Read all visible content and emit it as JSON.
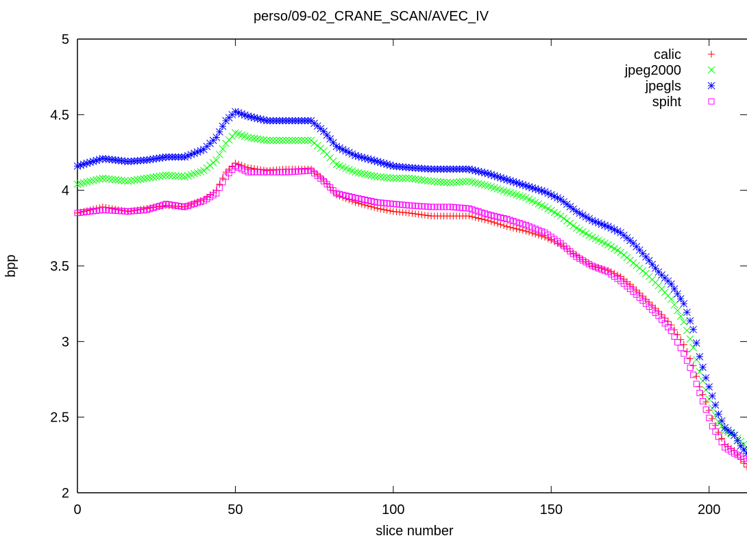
{
  "chart_data": {
    "type": "scatter",
    "title": "perso/09-02_CRANE_SCAN/AVEC_IV",
    "xlabel": "slice number",
    "ylabel": "bpp",
    "xlim": [
      0,
      212
    ],
    "ylim": [
      2,
      5
    ],
    "xticks": [
      0,
      50,
      100,
      150,
      200
    ],
    "yticks": [
      2,
      2.5,
      3,
      3.5,
      4,
      4.5,
      5
    ],
    "grid": false,
    "legend_position": "top-right",
    "x_step": 1,
    "series": [
      {
        "name": "calic",
        "color": "#ff0000",
        "marker": "plus",
        "keypoints": [
          [
            0,
            3.85
          ],
          [
            8,
            3.89
          ],
          [
            16,
            3.86
          ],
          [
            22,
            3.88
          ],
          [
            28,
            3.9
          ],
          [
            34,
            3.89
          ],
          [
            40,
            3.94
          ],
          [
            44,
            4.0
          ],
          [
            47,
            4.12
          ],
          [
            50,
            4.18
          ],
          [
            54,
            4.15
          ],
          [
            60,
            4.13
          ],
          [
            66,
            4.14
          ],
          [
            74,
            4.14
          ],
          [
            78,
            4.07
          ],
          [
            82,
            3.97
          ],
          [
            88,
            3.92
          ],
          [
            95,
            3.88
          ],
          [
            100,
            3.86
          ],
          [
            105,
            3.85
          ],
          [
            112,
            3.83
          ],
          [
            118,
            3.83
          ],
          [
            124,
            3.83
          ],
          [
            130,
            3.8
          ],
          [
            136,
            3.76
          ],
          [
            142,
            3.73
          ],
          [
            148,
            3.69
          ],
          [
            153,
            3.64
          ],
          [
            158,
            3.57
          ],
          [
            163,
            3.5
          ],
          [
            168,
            3.47
          ],
          [
            172,
            3.43
          ],
          [
            176,
            3.36
          ],
          [
            180,
            3.28
          ],
          [
            184,
            3.2
          ],
          [
            188,
            3.11
          ],
          [
            192,
            2.98
          ],
          [
            195,
            2.84
          ],
          [
            197,
            2.7
          ],
          [
            199,
            2.6
          ],
          [
            201,
            2.49
          ],
          [
            203,
            2.4
          ],
          [
            205,
            2.32
          ],
          [
            208,
            2.28
          ],
          [
            210,
            2.22
          ],
          [
            212,
            2.17
          ]
        ]
      },
      {
        "name": "jpeg2000",
        "color": "#00ff00",
        "marker": "cross",
        "keypoints": [
          [
            0,
            4.04
          ],
          [
            8,
            4.08
          ],
          [
            16,
            4.06
          ],
          [
            22,
            4.08
          ],
          [
            28,
            4.1
          ],
          [
            34,
            4.09
          ],
          [
            40,
            4.13
          ],
          [
            44,
            4.2
          ],
          [
            47,
            4.31
          ],
          [
            50,
            4.38
          ],
          [
            54,
            4.35
          ],
          [
            60,
            4.33
          ],
          [
            66,
            4.33
          ],
          [
            74,
            4.33
          ],
          [
            78,
            4.26
          ],
          [
            82,
            4.17
          ],
          [
            88,
            4.12
          ],
          [
            95,
            4.09
          ],
          [
            100,
            4.08
          ],
          [
            105,
            4.08
          ],
          [
            112,
            4.06
          ],
          [
            118,
            4.05
          ],
          [
            124,
            4.06
          ],
          [
            130,
            4.03
          ],
          [
            136,
            3.99
          ],
          [
            142,
            3.95
          ],
          [
            148,
            3.89
          ],
          [
            153,
            3.83
          ],
          [
            158,
            3.75
          ],
          [
            163,
            3.69
          ],
          [
            168,
            3.64
          ],
          [
            172,
            3.59
          ],
          [
            176,
            3.52
          ],
          [
            180,
            3.45
          ],
          [
            184,
            3.37
          ],
          [
            188,
            3.28
          ],
          [
            192,
            3.13
          ],
          [
            195,
            2.96
          ],
          [
            197,
            2.8
          ],
          [
            199,
            2.68
          ],
          [
            201,
            2.56
          ],
          [
            203,
            2.47
          ],
          [
            205,
            2.41
          ],
          [
            208,
            2.38
          ],
          [
            210,
            2.34
          ],
          [
            212,
            2.3
          ]
        ]
      },
      {
        "name": "jpegls",
        "color": "#0000ff",
        "marker": "star",
        "keypoints": [
          [
            0,
            4.16
          ],
          [
            8,
            4.21
          ],
          [
            16,
            4.19
          ],
          [
            22,
            4.2
          ],
          [
            28,
            4.22
          ],
          [
            34,
            4.22
          ],
          [
            40,
            4.27
          ],
          [
            44,
            4.35
          ],
          [
            47,
            4.46
          ],
          [
            50,
            4.52
          ],
          [
            54,
            4.49
          ],
          [
            60,
            4.46
          ],
          [
            66,
            4.46
          ],
          [
            74,
            4.46
          ],
          [
            78,
            4.39
          ],
          [
            82,
            4.29
          ],
          [
            88,
            4.23
          ],
          [
            95,
            4.19
          ],
          [
            100,
            4.16
          ],
          [
            105,
            4.15
          ],
          [
            112,
            4.14
          ],
          [
            118,
            4.14
          ],
          [
            124,
            4.14
          ],
          [
            130,
            4.11
          ],
          [
            136,
            4.07
          ],
          [
            142,
            4.03
          ],
          [
            148,
            3.99
          ],
          [
            153,
            3.94
          ],
          [
            158,
            3.86
          ],
          [
            163,
            3.8
          ],
          [
            168,
            3.76
          ],
          [
            172,
            3.72
          ],
          [
            176,
            3.65
          ],
          [
            180,
            3.56
          ],
          [
            184,
            3.46
          ],
          [
            188,
            3.38
          ],
          [
            192,
            3.25
          ],
          [
            195,
            3.08
          ],
          [
            197,
            2.9
          ],
          [
            199,
            2.76
          ],
          [
            201,
            2.64
          ],
          [
            203,
            2.52
          ],
          [
            205,
            2.43
          ],
          [
            208,
            2.38
          ],
          [
            210,
            2.31
          ],
          [
            212,
            2.26
          ]
        ]
      },
      {
        "name": "spiht",
        "color": "#ff00ff",
        "marker": "square",
        "keypoints": [
          [
            0,
            3.85
          ],
          [
            8,
            3.87
          ],
          [
            16,
            3.86
          ],
          [
            22,
            3.87
          ],
          [
            28,
            3.91
          ],
          [
            34,
            3.89
          ],
          [
            40,
            3.93
          ],
          [
            44,
            3.98
          ],
          [
            47,
            4.09
          ],
          [
            50,
            4.16
          ],
          [
            54,
            4.12
          ],
          [
            60,
            4.12
          ],
          [
            66,
            4.12
          ],
          [
            74,
            4.13
          ],
          [
            78,
            4.06
          ],
          [
            82,
            3.98
          ],
          [
            88,
            3.95
          ],
          [
            95,
            3.92
          ],
          [
            100,
            3.91
          ],
          [
            105,
            3.9
          ],
          [
            112,
            3.89
          ],
          [
            118,
            3.89
          ],
          [
            124,
            3.88
          ],
          [
            130,
            3.84
          ],
          [
            136,
            3.81
          ],
          [
            142,
            3.77
          ],
          [
            148,
            3.72
          ],
          [
            153,
            3.65
          ],
          [
            158,
            3.56
          ],
          [
            163,
            3.5
          ],
          [
            168,
            3.46
          ],
          [
            172,
            3.4
          ],
          [
            176,
            3.33
          ],
          [
            180,
            3.25
          ],
          [
            184,
            3.17
          ],
          [
            188,
            3.07
          ],
          [
            192,
            2.92
          ],
          [
            195,
            2.78
          ],
          [
            197,
            2.66
          ],
          [
            199,
            2.55
          ],
          [
            201,
            2.44
          ],
          [
            203,
            2.37
          ],
          [
            205,
            2.3
          ],
          [
            208,
            2.26
          ],
          [
            210,
            2.24
          ],
          [
            212,
            2.21
          ]
        ]
      }
    ]
  }
}
